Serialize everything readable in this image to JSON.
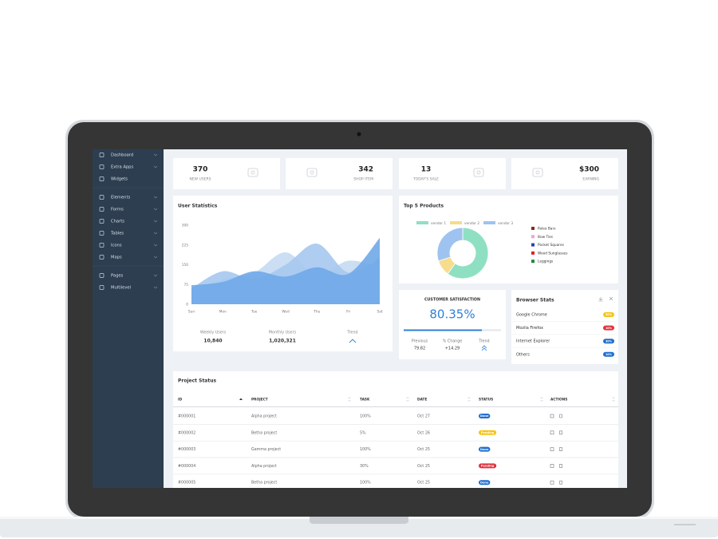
{
  "sidebar": {
    "groups": [
      [
        {
          "label": "Dashboard",
          "submenu": true
        },
        {
          "label": "Extra Apps",
          "submenu": true
        },
        {
          "label": "Widgets",
          "submenu": false
        }
      ],
      [
        {
          "label": "Elements",
          "submenu": true
        },
        {
          "label": "Forms",
          "submenu": true
        },
        {
          "label": "Charts",
          "submenu": true
        },
        {
          "label": "Tables",
          "submenu": true
        },
        {
          "label": "Icons",
          "submenu": true
        },
        {
          "label": "Maps",
          "submenu": true
        }
      ],
      [
        {
          "label": "Pages",
          "submenu": true
        },
        {
          "label": "Multilevel",
          "submenu": true
        }
      ]
    ]
  },
  "stats": [
    {
      "value": 370,
      "label": "NEW USERS"
    },
    {
      "value": 342,
      "label": "SHOP ITEM"
    },
    {
      "value": 13,
      "label": "TODAY'S SALE"
    },
    {
      "value": "$300",
      "label": "EARNING"
    }
  ],
  "user_statistics": {
    "title": "User Statistics",
    "chart": {
      "type": "area",
      "categories": [
        "Sun",
        "Mon",
        "Tue",
        "Wed",
        "Thu",
        "Fri",
        "Sat"
      ],
      "ylim": [
        0,
        300
      ],
      "yticks": [
        0,
        75,
        150,
        225,
        300
      ],
      "series": [
        {
          "color": "#c5daf2",
          "values": [
            50,
            95,
            120,
            197,
            110,
            165,
            140
          ]
        },
        {
          "color": "#a6c8ee",
          "values": [
            60,
            125,
            95,
            150,
            230,
            120,
            175
          ]
        },
        {
          "color": "#6fa8e8",
          "values": [
            72,
            85,
            125,
            105,
            140,
            115,
            252
          ]
        }
      ]
    },
    "summary": [
      {
        "label": "Weekly Users",
        "value": "10,840"
      },
      {
        "label": "Monthly Users",
        "value": "1,020,321"
      },
      {
        "label": "Trend"
      }
    ]
  },
  "top_products": {
    "title": "Top 5 Products",
    "chart": {
      "type": "donut",
      "series": [
        {
          "name": "vendor 1",
          "color": "#8fe0c3",
          "value": 60
        },
        {
          "name": "vendor 2",
          "color": "#f6dc8c",
          "value": 10
        },
        {
          "name": "vendor 3",
          "color": "#9ec3f0",
          "value": 30
        }
      ]
    },
    "products": [
      {
        "name": "Paleo Bars",
        "color": "#8b2a1a"
      },
      {
        "name": "Bow Ties",
        "color": "#e6a6d8"
      },
      {
        "name": "Pocket Squares",
        "color": "#2244aa"
      },
      {
        "name": "Wood Sunglasses",
        "color": "#dd2222"
      },
      {
        "name": "Leggings",
        "color": "#1e8a2e"
      }
    ]
  },
  "customer_satisfaction": {
    "title": "CUSTOMER SATISFACTION",
    "value": 80.35,
    "value_label": "80.35%",
    "range": [
      0,
      100
    ],
    "stats": [
      {
        "label": "Previous",
        "value": 79.82
      },
      {
        "label": "% Change",
        "value": "+14.29"
      },
      {
        "label": "Trend"
      }
    ]
  },
  "browser_stats": {
    "title": "Browser Stats",
    "rows": [
      {
        "name": "Google Chrome",
        "badge": "50%",
        "color": "#f5c518"
      },
      {
        "name": "Mozila Firefox",
        "badge": "10%",
        "color": "#e0343e"
      },
      {
        "name": "Internet Explorer",
        "badge": "30%",
        "color": "#1f6fd0"
      },
      {
        "name": "Others",
        "badge": "10%",
        "color": "#1f6fd0"
      }
    ]
  },
  "project_status": {
    "title": "Project Status",
    "columns": [
      "ID",
      "PROJECT",
      "TASK",
      "DATE",
      "STATUS",
      "ACTIONS"
    ],
    "rows": [
      {
        "id": "#000001",
        "project": "Alpha project",
        "task": "100%",
        "date": "Oct 27",
        "status": "Done",
        "status_color": "#1f6fd0"
      },
      {
        "id": "#000002",
        "project": "Betha project",
        "task": "5%",
        "date": "Oct 26",
        "status": "Pending",
        "status_color": "#f5c518"
      },
      {
        "id": "#000003",
        "project": "Gamma project",
        "task": "100%",
        "date": "Oct 25",
        "status": "Done",
        "status_color": "#1f6fd0"
      },
      {
        "id": "#000004",
        "project": "Alpha project",
        "task": "30%",
        "date": "Oct 25",
        "status": "Pending",
        "status_color": "#e0343e"
      },
      {
        "id": "#000005",
        "project": "Betha project",
        "task": "100%",
        "date": "Oct 25",
        "status": "Done",
        "status_color": "#1f6fd0"
      }
    ]
  }
}
